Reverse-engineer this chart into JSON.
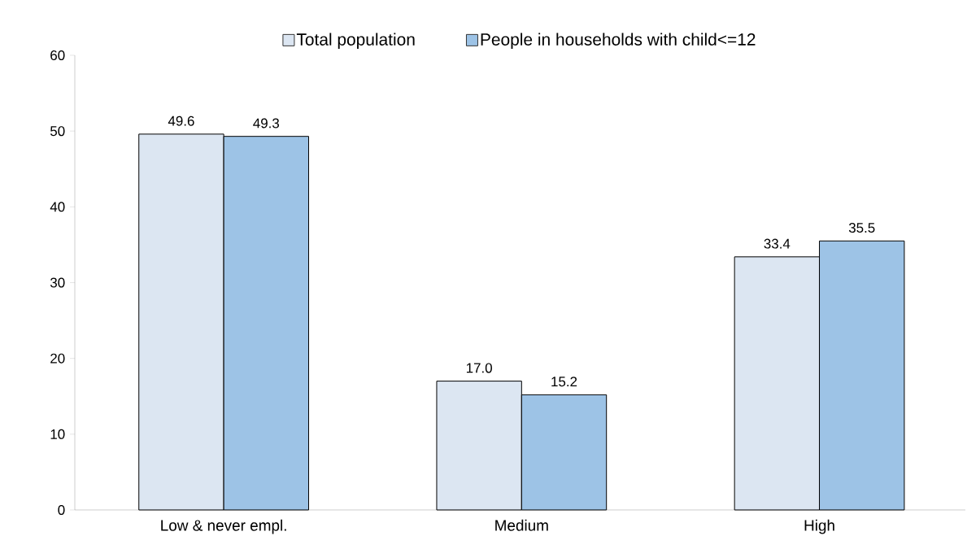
{
  "chart_data": {
    "type": "bar",
    "categories": [
      "Low & never empl.",
      "Medium",
      "High"
    ],
    "series": [
      {
        "name": "Total population",
        "color": "#dce6f2",
        "values": [
          49.6,
          17.0,
          33.4
        ],
        "value_labels": [
          "49.6",
          "17.0",
          "33.4"
        ]
      },
      {
        "name": "People in households with child<=12",
        "color": "#9dc3e6",
        "values": [
          49.3,
          15.2,
          35.5
        ],
        "value_labels": [
          "49.3",
          "15.2",
          "35.5"
        ]
      }
    ],
    "ylim": [
      0,
      60
    ],
    "yticks": [
      0,
      10,
      20,
      30,
      40,
      50,
      60
    ],
    "legend": "top",
    "grid": false
  }
}
